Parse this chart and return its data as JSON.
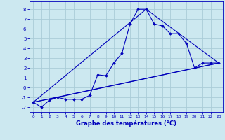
{
  "xlabel": "Graphe des températures (°C)",
  "background_color": "#cce8f0",
  "grid_color": "#aaccd8",
  "line_color": "#0000bb",
  "x_min": -0.5,
  "x_max": 23.5,
  "y_min": -2.5,
  "y_max": 8.8,
  "yticks": [
    -2,
    -1,
    0,
    1,
    2,
    3,
    4,
    5,
    6,
    7,
    8
  ],
  "xticks": [
    0,
    1,
    2,
    3,
    4,
    5,
    6,
    7,
    8,
    9,
    10,
    11,
    12,
    13,
    14,
    15,
    16,
    17,
    18,
    19,
    20,
    21,
    22,
    23
  ],
  "series1_x": [
    0,
    1,
    2,
    3,
    4,
    5,
    6,
    7,
    8,
    9,
    10,
    11,
    12,
    13,
    14,
    15,
    16,
    17,
    18,
    19,
    20,
    21,
    22,
    23
  ],
  "series1_y": [
    -1.5,
    -2.0,
    -1.3,
    -1.0,
    -1.2,
    -1.2,
    -1.2,
    -0.8,
    1.3,
    1.2,
    2.5,
    3.5,
    6.5,
    8.0,
    8.0,
    6.5,
    6.3,
    5.5,
    5.5,
    4.5,
    2.0,
    2.5,
    2.5,
    2.5
  ],
  "series2_x": [
    0,
    23
  ],
  "series2_y": [
    -1.5,
    2.5
  ],
  "series3_x": [
    0,
    14,
    23
  ],
  "series3_y": [
    -1.5,
    8.0,
    2.5
  ],
  "series4_x": [
    0,
    3,
    23
  ],
  "series4_y": [
    -1.5,
    -1.0,
    2.5
  ]
}
